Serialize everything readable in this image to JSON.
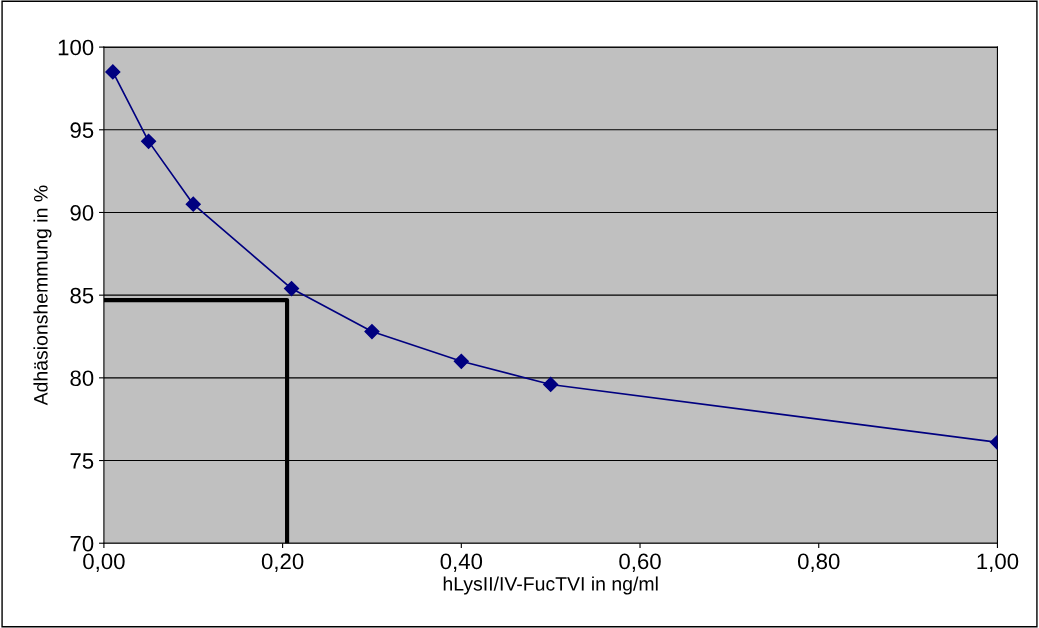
{
  "chart_data": {
    "type": "line",
    "xlabel": "hLysII/IV-FucTVI in ng/ml",
    "ylabel": "Adhäsionshemmung in %",
    "xlim": [
      0,
      1
    ],
    "ylim": [
      70,
      100
    ],
    "xticks": [
      {
        "value": 0,
        "label": "0,00"
      },
      {
        "value": 0.2,
        "label": "0,20"
      },
      {
        "value": 0.4,
        "label": "0,40"
      },
      {
        "value": 0.6,
        "label": "0,60"
      },
      {
        "value": 0.8,
        "label": "0,80"
      },
      {
        "value": 1,
        "label": "1,00"
      }
    ],
    "yticks": [
      70,
      75,
      80,
      85,
      90,
      95,
      100
    ],
    "grid": "y",
    "series": [
      {
        "color": "#000080",
        "marker": "diamond",
        "line_style": "solid",
        "x": [
          0.01,
          0.05,
          0.1,
          0.21,
          0.3,
          0.4,
          0.5,
          1.0
        ],
        "values": [
          98.5,
          94.3,
          90.5,
          85.4,
          82.8,
          81.0,
          79.6,
          76.1
        ]
      },
      {
        "color": "#000000",
        "marker": "none",
        "line_style": "solid",
        "x": [
          0,
          0.205,
          0.205
        ],
        "values": [
          84.7,
          84.7,
          70
        ]
      }
    ]
  }
}
